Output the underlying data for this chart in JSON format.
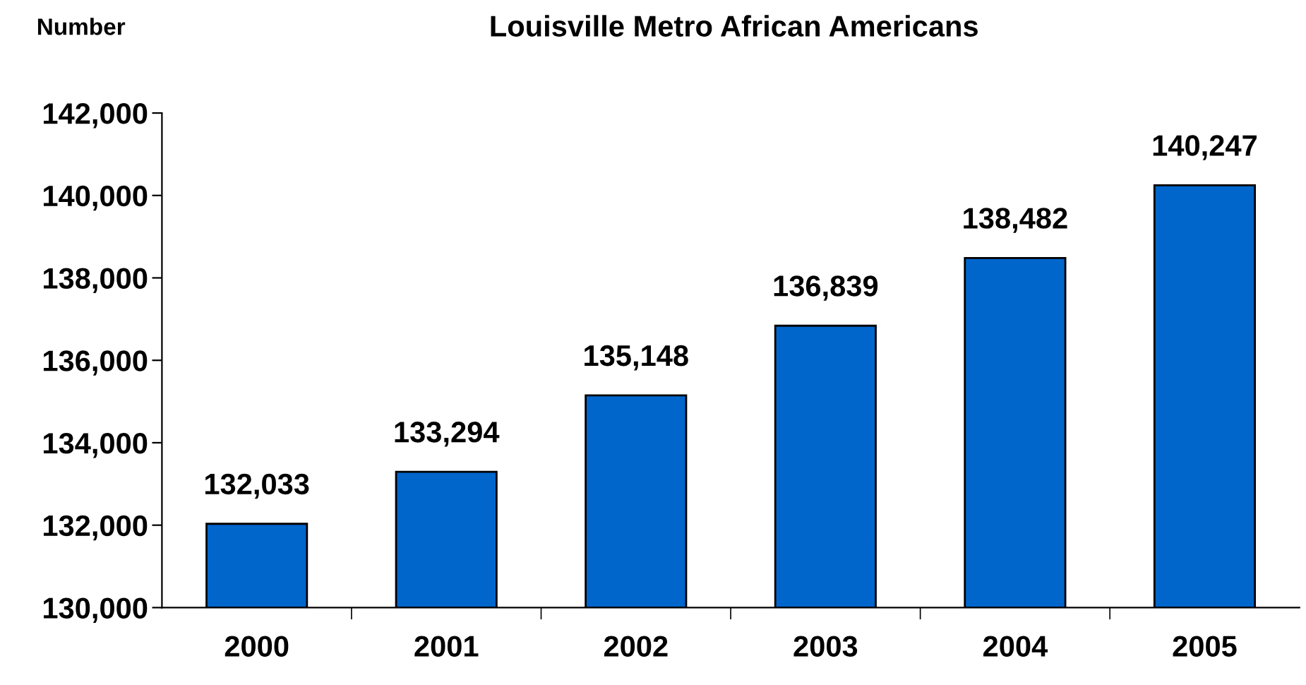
{
  "chart_data": {
    "type": "bar",
    "title": "Louisville Metro African Americans",
    "ylabel": "Number",
    "categories": [
      "2000",
      "2001",
      "2002",
      "2003",
      "2004",
      "2005"
    ],
    "values": [
      132033,
      133294,
      135148,
      136839,
      138482,
      140247
    ],
    "color": "#0066cc",
    "ylim": [
      130000,
      142000
    ],
    "yticks": [
      {
        "value": 130000,
        "label": "130,000"
      },
      {
        "value": 132000,
        "label": "132,000"
      },
      {
        "value": 134000,
        "label": "134,000"
      },
      {
        "value": 136000,
        "label": "136,000"
      },
      {
        "value": 138000,
        "label": "138,000"
      },
      {
        "value": 140000,
        "label": "140,000"
      },
      {
        "value": 142000,
        "label": "142,000"
      }
    ],
    "value_labels": [
      "132,033",
      "133,294",
      "135,148",
      "136,839",
      "138,482",
      "140,247"
    ],
    "grid": false,
    "legend": false
  }
}
